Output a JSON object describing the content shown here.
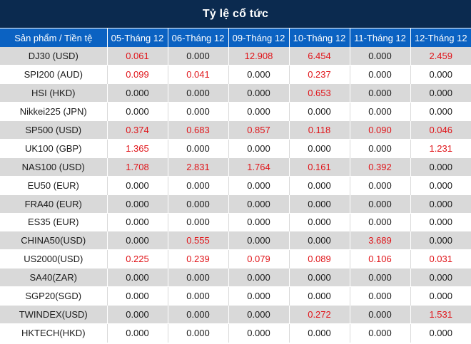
{
  "title": "Tỷ lệ cổ tức",
  "columns": [
    "Sản phẩm / Tiền tệ",
    "05-Tháng 12",
    "06-Tháng 12",
    "09-Tháng 12",
    "10-Tháng 12",
    "11-Tháng 12",
    "12-Tháng 12"
  ],
  "rows": [
    {
      "product": "DJ30 (USD)",
      "values": [
        "0.061",
        "0.000",
        "12.908",
        "6.454",
        "0.000",
        "2.459"
      ]
    },
    {
      "product": "SPI200 (AUD)",
      "values": [
        "0.099",
        "0.041",
        "0.000",
        "0.237",
        "0.000",
        "0.000"
      ]
    },
    {
      "product": "HSI (HKD)",
      "values": [
        "0.000",
        "0.000",
        "0.000",
        "0.653",
        "0.000",
        "0.000"
      ]
    },
    {
      "product": "Nikkei225 (JPN)",
      "values": [
        "0.000",
        "0.000",
        "0.000",
        "0.000",
        "0.000",
        "0.000"
      ]
    },
    {
      "product": "SP500 (USD)",
      "values": [
        "0.374",
        "0.683",
        "0.857",
        "0.118",
        "0.090",
        "0.046"
      ]
    },
    {
      "product": "UK100 (GBP)",
      "values": [
        "1.365",
        "0.000",
        "0.000",
        "0.000",
        "0.000",
        "1.231"
      ]
    },
    {
      "product": "NAS100 (USD)",
      "values": [
        "1.708",
        "2.831",
        "1.764",
        "0.161",
        "0.392",
        "0.000"
      ]
    },
    {
      "product": "EU50 (EUR)",
      "values": [
        "0.000",
        "0.000",
        "0.000",
        "0.000",
        "0.000",
        "0.000"
      ]
    },
    {
      "product": "FRA40 (EUR)",
      "values": [
        "0.000",
        "0.000",
        "0.000",
        "0.000",
        "0.000",
        "0.000"
      ]
    },
    {
      "product": "ES35 (EUR)",
      "values": [
        "0.000",
        "0.000",
        "0.000",
        "0.000",
        "0.000",
        "0.000"
      ]
    },
    {
      "product": "CHINA50(USD)",
      "values": [
        "0.000",
        "0.555",
        "0.000",
        "0.000",
        "3.689",
        "0.000"
      ]
    },
    {
      "product": "US2000(USD)",
      "values": [
        "0.225",
        "0.239",
        "0.079",
        "0.089",
        "0.106",
        "0.031"
      ]
    },
    {
      "product": "SA40(ZAR)",
      "values": [
        "0.000",
        "0.000",
        "0.000",
        "0.000",
        "0.000",
        "0.000"
      ]
    },
    {
      "product": "SGP20(SGD)",
      "values": [
        "0.000",
        "0.000",
        "0.000",
        "0.000",
        "0.000",
        "0.000"
      ]
    },
    {
      "product": "TWINDEX(USD)",
      "values": [
        "0.000",
        "0.000",
        "0.000",
        "0.272",
        "0.000",
        "1.531"
      ]
    },
    {
      "product": "HKTECH(HKD)",
      "values": [
        "0.000",
        "0.000",
        "0.000",
        "0.000",
        "0.000",
        "0.000"
      ]
    }
  ],
  "colors": {
    "title_bg": "#0b2a4f",
    "header_bg": "#0b62c2",
    "stripe": "#d9d9d9",
    "positive_value": "#e0151a",
    "zero_value": "#1a1a1a"
  }
}
